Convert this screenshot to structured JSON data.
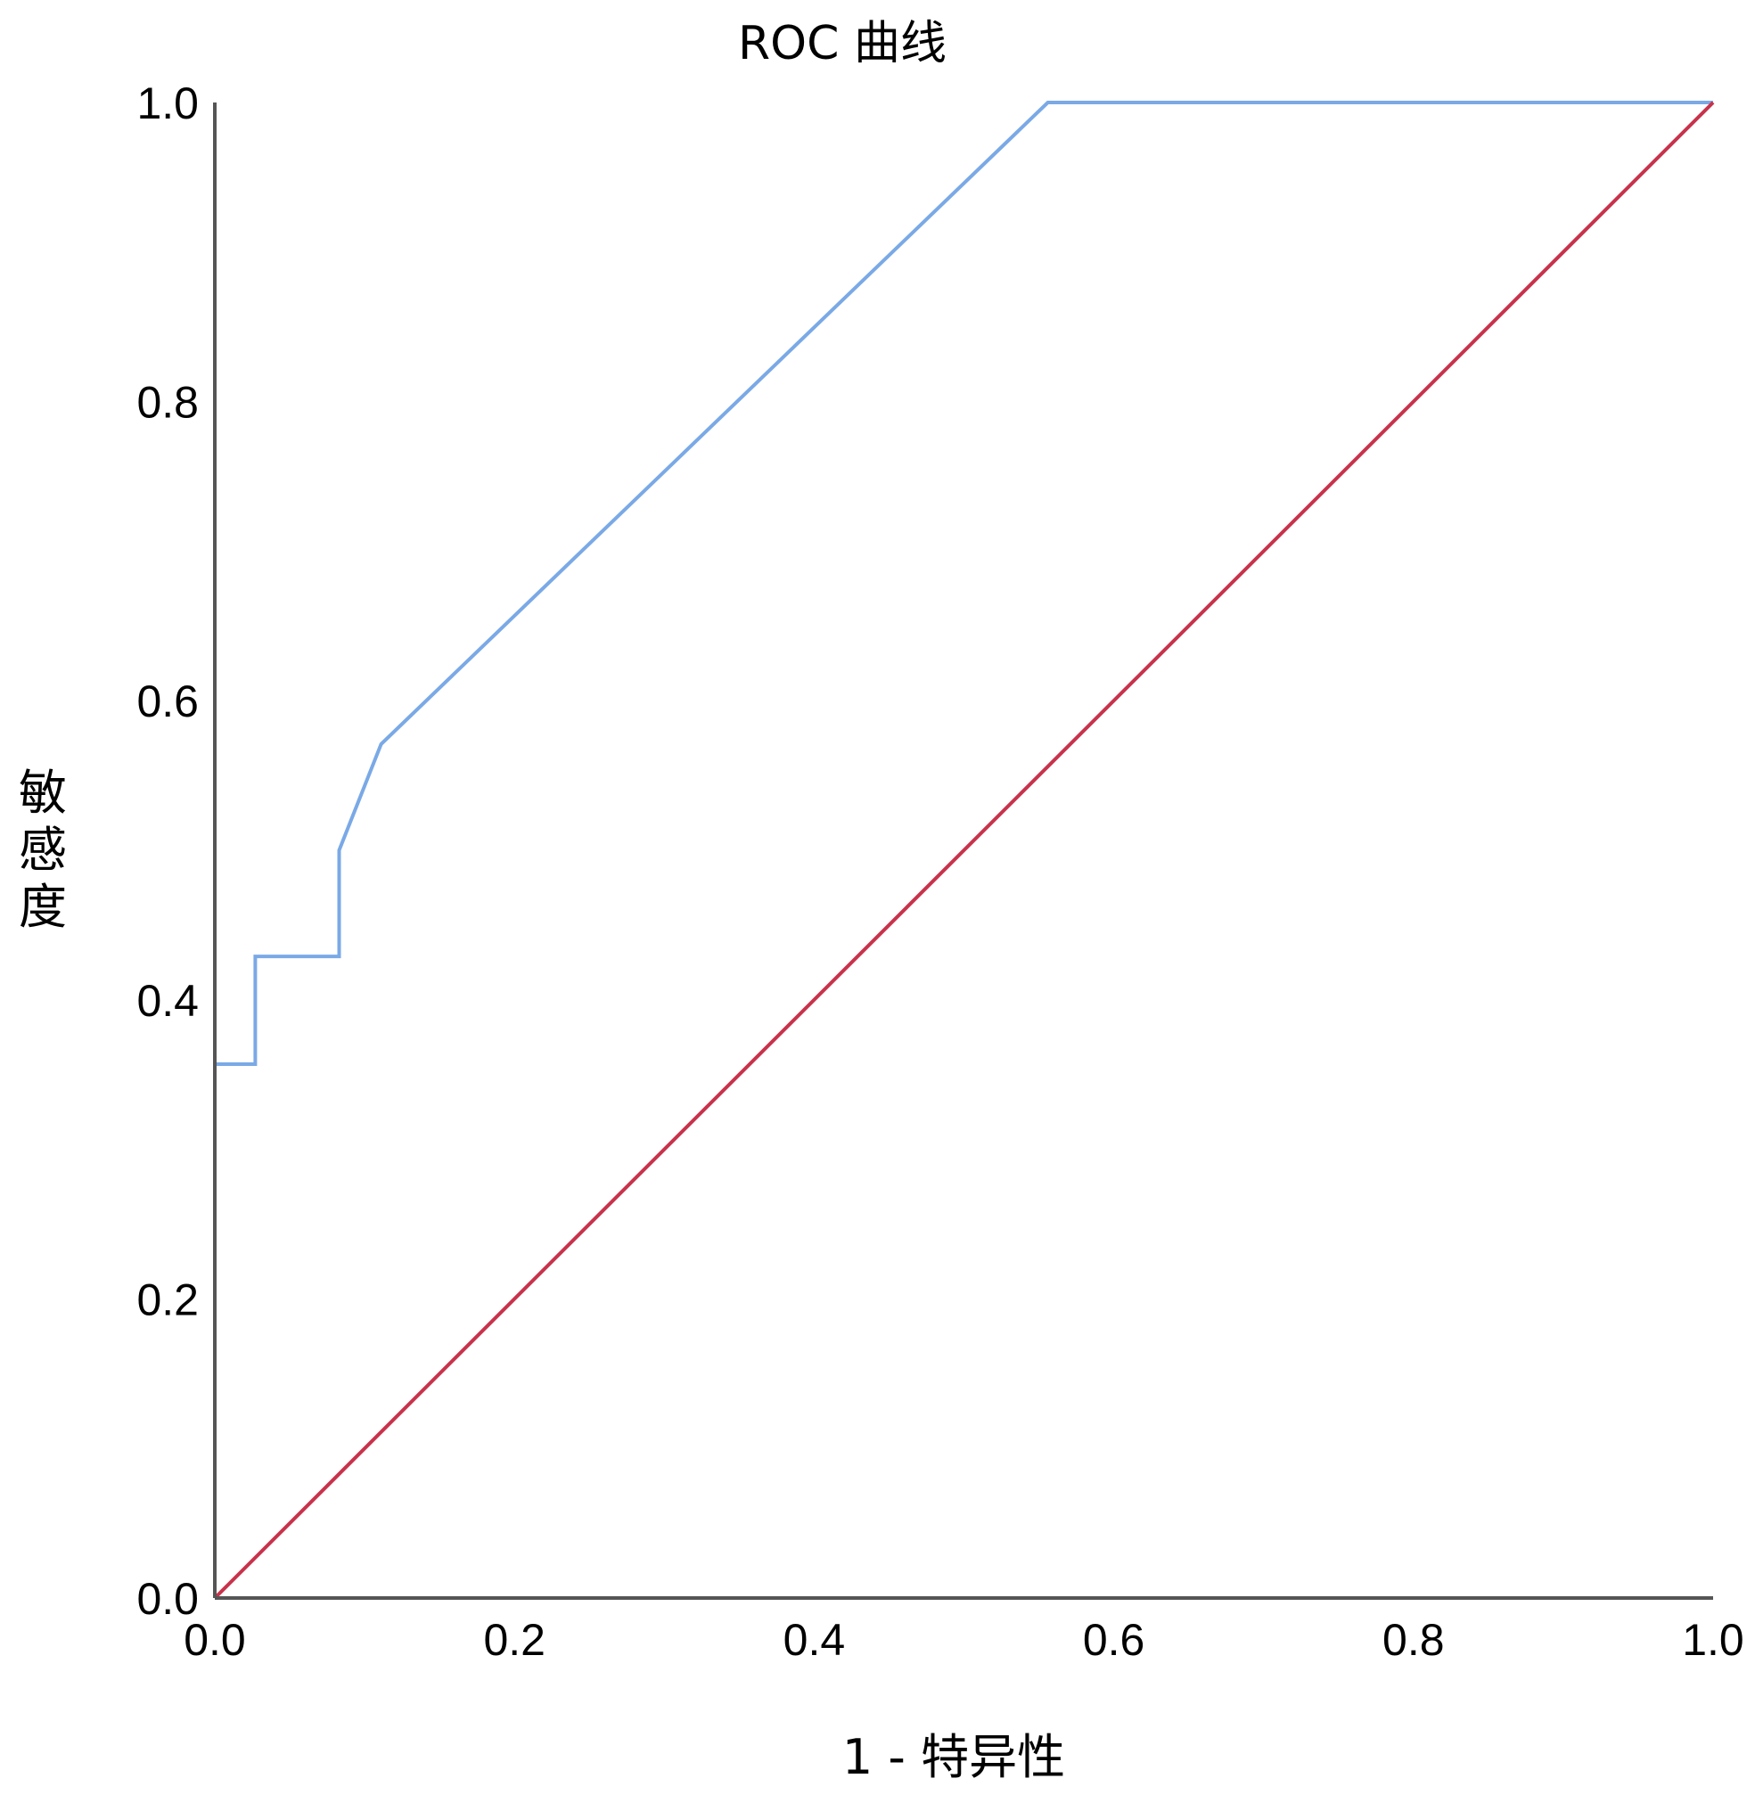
{
  "chart_data": {
    "type": "line",
    "title": "ROC 曲线",
    "xlabel": "1 - 特异性",
    "ylabel": "敏感度",
    "xlim": [
      0.0,
      1.0
    ],
    "ylim": [
      0.0,
      1.0
    ],
    "x_ticks": [
      "0.0",
      "0.2",
      "0.4",
      "0.6",
      "0.8",
      "1.0"
    ],
    "y_ticks": [
      "0.0",
      "0.2",
      "0.4",
      "0.6",
      "0.8",
      "1.0"
    ],
    "grid": false,
    "series": [
      {
        "color": "#7aa9e6",
        "x": [
          0.0,
          0.0,
          0.027,
          0.027,
          0.083,
          0.083,
          0.111,
          0.556,
          1.0
        ],
        "y": [
          0.0,
          0.357,
          0.357,
          0.429,
          0.429,
          0.5,
          0.571,
          1.0,
          1.0
        ]
      },
      {
        "color": "#c8324b",
        "x": [
          0.0,
          1.0
        ],
        "y": [
          0.0,
          1.0
        ]
      }
    ],
    "axis_color": "#555555"
  }
}
